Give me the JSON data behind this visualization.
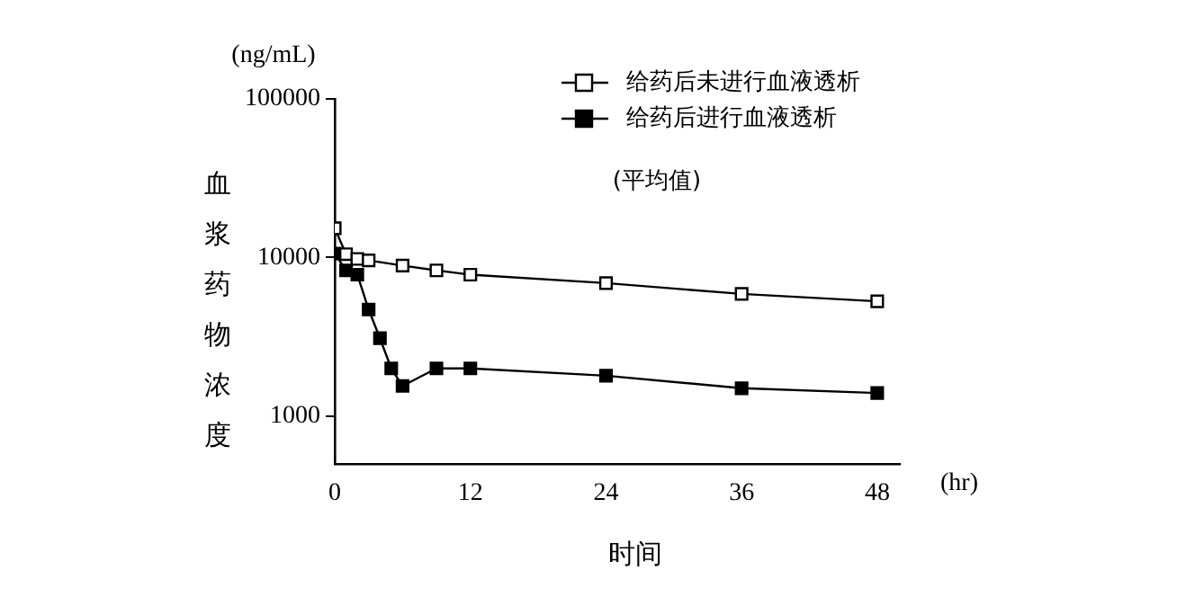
{
  "chart_data": {
    "type": "line",
    "ylabel": "血浆药物浓度",
    "xlabel": "时间",
    "annotations": [
      "(ng/mL)",
      "(hr)",
      "(平均值)"
    ],
    "log": "y",
    "xlim": [
      0,
      50
    ],
    "xticks": [
      0,
      12,
      24,
      36,
      48
    ],
    "ylim": [
      500,
      100000
    ],
    "yticks": [
      1000,
      10000,
      100000
    ],
    "grid": false,
    "legend": "top right",
    "marker": "square",
    "line_style": "solid",
    "series": [
      {
        "name": "给药后未进行血液透析",
        "color": "#000000",
        "x": [
          0,
          1,
          2,
          3,
          6,
          9,
          12,
          24,
          36,
          48
        ],
        "values": [
          15300,
          10500,
          9800,
          9600,
          8900,
          8300,
          7800,
          6900,
          5900,
          5300
        ]
      },
      {
        "name": "给药后进行血液透析",
        "color": "#000000",
        "x": [
          0,
          1,
          2,
          3,
          4,
          5,
          6,
          9,
          12,
          24,
          36,
          48
        ],
        "values": [
          10600,
          8300,
          7800,
          4700,
          3100,
          2000,
          1550,
          2000,
          2000,
          1800,
          1500,
          1400
        ]
      }
    ]
  }
}
